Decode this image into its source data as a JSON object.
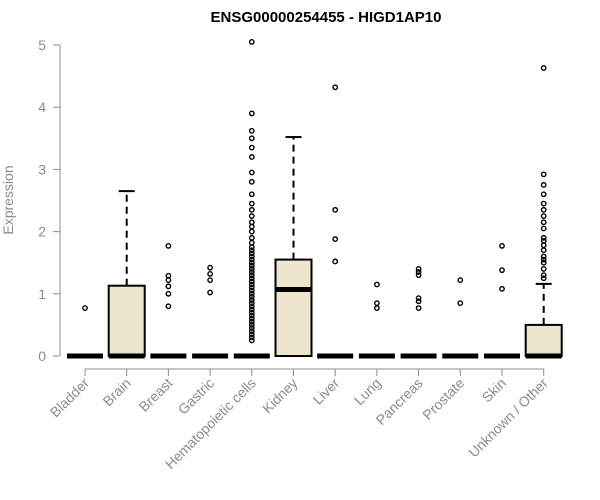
{
  "chart_data": {
    "type": "box",
    "title": "ENSG00000254455 - HIGD1AP10",
    "ylabel": "Expression",
    "ylim": [
      0,
      5
    ],
    "yticks": [
      0,
      1,
      2,
      3,
      4,
      5
    ],
    "categories": [
      "Bladder",
      "Brain",
      "Breast",
      "Gastric",
      "Hematopoietic cells",
      "Kidney",
      "Liver",
      "Lung",
      "Pancreas",
      "Prostate",
      "Skin",
      "Unknown / Other"
    ],
    "boxes": [
      {
        "q1": 0,
        "median": 0,
        "q3": 0,
        "whisker_low": 0,
        "whisker_high": 0,
        "outliers": [
          0.77
        ]
      },
      {
        "q1": 0,
        "median": 0,
        "q3": 1.13,
        "whisker_low": 0,
        "whisker_high": 2.65,
        "outliers": []
      },
      {
        "q1": 0,
        "median": 0,
        "q3": 0,
        "whisker_low": 0,
        "whisker_high": 0,
        "outliers": [
          0.8,
          1.0,
          1.12,
          1.22,
          1.29,
          1.77
        ]
      },
      {
        "q1": 0,
        "median": 0,
        "q3": 0,
        "whisker_low": 0,
        "whisker_high": 0,
        "outliers": [
          1.02,
          1.22,
          1.32,
          1.42
        ]
      },
      {
        "q1": 0,
        "median": 0,
        "q3": 0,
        "whisker_low": 0,
        "whisker_high": 0,
        "outliers": [
          0.25,
          0.3,
          0.35,
          0.4,
          0.45,
          0.5,
          0.55,
          0.6,
          0.65,
          0.7,
          0.75,
          0.8,
          0.85,
          0.9,
          0.95,
          1.0,
          1.05,
          1.1,
          1.15,
          1.2,
          1.25,
          1.3,
          1.35,
          1.4,
          1.45,
          1.5,
          1.55,
          1.6,
          1.65,
          1.7,
          1.75,
          1.82,
          1.9,
          2.0,
          2.08,
          2.15,
          2.25,
          2.35,
          2.45,
          2.6,
          2.8,
          2.95,
          3.2,
          3.35,
          3.5,
          3.62,
          3.9,
          5.05
        ]
      },
      {
        "q1": 0,
        "median": 1.07,
        "q3": 1.55,
        "whisker_low": 0,
        "whisker_high": 3.52,
        "outliers": []
      },
      {
        "q1": 0,
        "median": 0,
        "q3": 0,
        "whisker_low": 0,
        "whisker_high": 0,
        "outliers": [
          1.52,
          1.88,
          2.35,
          4.32
        ]
      },
      {
        "q1": 0,
        "median": 0,
        "q3": 0,
        "whisker_low": 0,
        "whisker_high": 0,
        "outliers": [
          0.77,
          0.85,
          1.15
        ]
      },
      {
        "q1": 0,
        "median": 0,
        "q3": 0,
        "whisker_low": 0,
        "whisker_high": 0,
        "outliers": [
          0.77,
          0.88,
          0.93,
          1.3,
          1.35,
          1.4
        ]
      },
      {
        "q1": 0,
        "median": 0,
        "q3": 0,
        "whisker_low": 0,
        "whisker_high": 0,
        "outliers": [
          0.85,
          1.22
        ]
      },
      {
        "q1": 0,
        "median": 0,
        "q3": 0,
        "whisker_low": 0,
        "whisker_high": 0,
        "outliers": [
          1.08,
          1.38,
          1.77
        ]
      },
      {
        "q1": 0,
        "median": 0,
        "q3": 0.5,
        "whisker_low": 0,
        "whisker_high": 1.16,
        "outliers": [
          1.25,
          1.3,
          1.4,
          1.5,
          1.55,
          1.6,
          1.7,
          1.78,
          1.85,
          1.9,
          2.05,
          2.15,
          2.25,
          2.35,
          2.45,
          2.6,
          2.75,
          2.92,
          4.63
        ]
      }
    ],
    "colors": {
      "box_fill": "#ede6cd",
      "box_stroke": "#000000",
      "axis": "#8c8c8c",
      "label": "#8c8c8c"
    },
    "grid": false,
    "legend": "none"
  }
}
